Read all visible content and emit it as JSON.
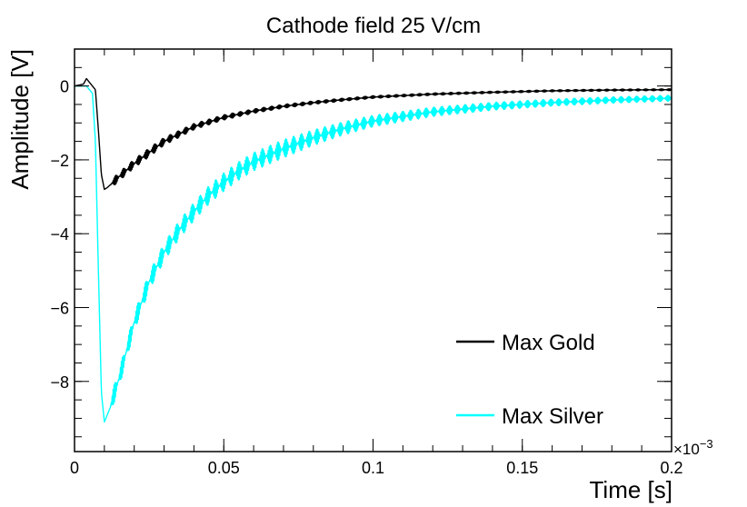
{
  "chart_data": {
    "type": "line",
    "title": "Cathode field 25 V/cm",
    "xlabel": "Time [s]",
    "ylabel": "Amplitude [V]",
    "x_multiplier_label": "×10",
    "x_multiplier_exponent": "−3",
    "xlim": [
      0,
      0.2
    ],
    "ylim": [
      -9.9,
      1.0
    ],
    "x_ticks": [
      0,
      0.05,
      0.1,
      0.15,
      0.2
    ],
    "x_tick_labels": [
      "0",
      "0.05",
      "0.1",
      "0.15",
      "0.2"
    ],
    "y_ticks": [
      0,
      -2,
      -4,
      -6,
      -8
    ],
    "y_tick_labels": [
      "0",
      "−2",
      "−4",
      "−6",
      "−8"
    ],
    "legend_position": "lower-right",
    "series": [
      {
        "name": "Max Gold",
        "color": "#000000",
        "x": [
          0,
          0.003,
          0.004,
          0.006,
          0.007,
          0.008,
          0.009,
          0.01,
          0.011,
          0.013,
          0.015,
          0.02,
          0.025,
          0.03,
          0.035,
          0.04,
          0.05,
          0.06,
          0.07,
          0.08,
          0.09,
          0.1,
          0.12,
          0.14,
          0.16,
          0.18,
          0.2
        ],
        "y": [
          0.0,
          0.05,
          0.2,
          0.0,
          -0.1,
          -1.2,
          -2.4,
          -2.8,
          -2.75,
          -2.6,
          -2.45,
          -2.1,
          -1.8,
          -1.5,
          -1.3,
          -1.1,
          -0.85,
          -0.68,
          -0.55,
          -0.45,
          -0.37,
          -0.3,
          -0.22,
          -0.17,
          -0.13,
          -0.11,
          -0.1
        ],
        "noise": 0.12
      },
      {
        "name": "Max Silver",
        "color": "#00ffff",
        "x": [
          0,
          0.004,
          0.006,
          0.007,
          0.008,
          0.009,
          0.01,
          0.011,
          0.012,
          0.013,
          0.015,
          0.02,
          0.025,
          0.03,
          0.035,
          0.04,
          0.045,
          0.05,
          0.055,
          0.06,
          0.07,
          0.08,
          0.09,
          0.1,
          0.12,
          0.14,
          0.16,
          0.18,
          0.2
        ],
        "y": [
          0.0,
          0.0,
          -0.2,
          -1.5,
          -5.0,
          -8.3,
          -9.1,
          -8.9,
          -8.7,
          -8.4,
          -7.9,
          -6.4,
          -5.3,
          -4.5,
          -3.9,
          -3.4,
          -2.95,
          -2.6,
          -2.3,
          -2.05,
          -1.7,
          -1.4,
          -1.15,
          -0.95,
          -0.7,
          -0.55,
          -0.45,
          -0.38,
          -0.33
        ],
        "noise": 0.25
      }
    ]
  }
}
